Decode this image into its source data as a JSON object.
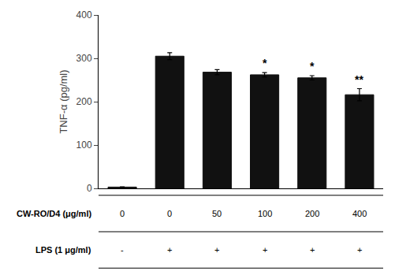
{
  "chart_data": {
    "type": "bar",
    "categories": [
      "0",
      "0",
      "50",
      "100",
      "200",
      "400"
    ],
    "values": [
      3,
      305,
      268,
      262,
      255,
      216
    ],
    "errors": [
      0.5,
      8,
      6,
      5,
      5,
      14
    ],
    "color": "#111111",
    "ylabel": "TNF-α (pg/ml)",
    "ylim": [
      0,
      400
    ],
    "yticks": [
      0,
      100,
      200,
      300,
      400
    ],
    "grid": false,
    "tick_labels": "y",
    "annotations": [
      {
        "text": "*",
        "x": 3
      },
      {
        "text": "*",
        "x": 4
      },
      {
        "text": "**",
        "x": 5
      }
    ],
    "table": [
      {
        "label": "CW-RO/D4 (μg/ml)",
        "values": [
          "0",
          "0",
          "50",
          "100",
          "200",
          "400"
        ]
      },
      {
        "label": "LPS (1 μg/ml)",
        "values": [
          "-",
          "+",
          "+",
          "+",
          "+",
          "+"
        ]
      }
    ]
  }
}
